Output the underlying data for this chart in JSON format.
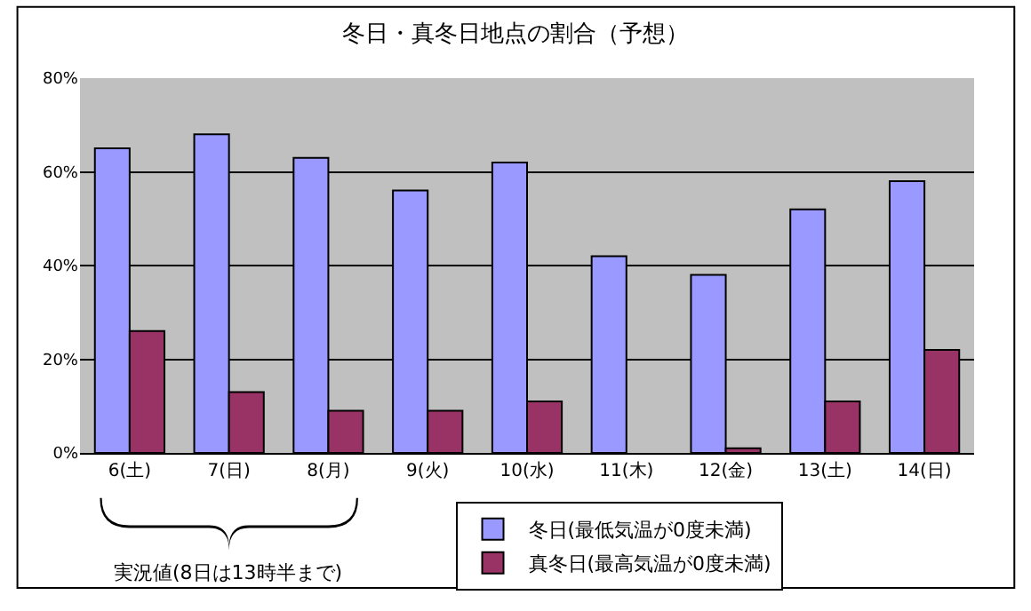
{
  "chart_data": {
    "type": "bar",
    "title": "冬日・真冬日地点の割合（予想）",
    "categories": [
      "6(土)",
      "7(日)",
      "8(月)",
      "9(火)",
      "10(水)",
      "11(木)",
      "12(金)",
      "13(土)",
      "14(日)"
    ],
    "series": [
      {
        "name": "冬日(最低気温が0度未満)",
        "color": "#9999ff",
        "values": [
          65,
          68,
          63,
          56,
          62,
          42,
          38,
          52,
          58
        ]
      },
      {
        "name": "真冬日(最高気温が0度未満)",
        "color": "#993366",
        "values": [
          26,
          13,
          9,
          9,
          11,
          0,
          1,
          11,
          22
        ]
      }
    ],
    "ylim": [
      0,
      80
    ],
    "yticks": [
      {
        "value": 0,
        "label": "0%"
      },
      {
        "value": 20,
        "label": "20%"
      },
      {
        "value": 40,
        "label": "40%"
      },
      {
        "value": 60,
        "label": "60%"
      },
      {
        "value": 80,
        "label": "80%"
      }
    ],
    "grid": "y",
    "legend": "bottom",
    "annotations": [
      "実況値(8日は13時半まで)"
    ]
  }
}
